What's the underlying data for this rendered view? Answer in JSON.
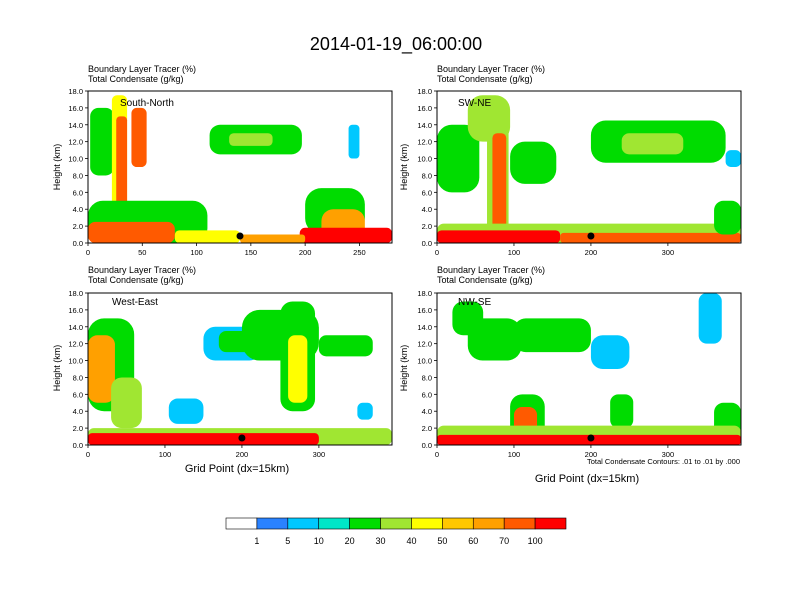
{
  "title": "2014-01-19_06:00:00",
  "chart_data": [
    {
      "type": "heatmap",
      "subtitle_1": "Boundary Layer Tracer    (%)",
      "subtitle_2": "Total Condensate    (g/kg)",
      "panel_label": "South-North",
      "ylabel": "Height (km)",
      "xlabel": "",
      "xlim": [
        0,
        280
      ],
      "ylim": [
        0,
        18
      ],
      "xticks": [
        {
          "v": 0,
          "label": "0"
        },
        {
          "v": 50,
          "label": "50"
        },
        {
          "v": 100,
          "label": "100"
        },
        {
          "v": 150,
          "label": "150"
        },
        {
          "v": 200,
          "label": "200"
        },
        {
          "v": 250,
          "label": "250"
        }
      ],
      "marker_x": 140,
      "blobs": [
        {
          "x": 2,
          "w": 22,
          "y": 8,
          "h": 8,
          "v": 20
        },
        {
          "x": 22,
          "w": 14,
          "y": 0,
          "h": 17.5,
          "v": 40
        },
        {
          "x": 26,
          "w": 10,
          "y": 1,
          "h": 14,
          "v": 70
        },
        {
          "x": 40,
          "w": 14,
          "y": 9,
          "h": 7,
          "v": 70
        },
        {
          "x": 0,
          "w": 110,
          "y": 0,
          "h": 5,
          "v": 20
        },
        {
          "x": 0,
          "w": 80,
          "y": 0,
          "h": 2.5,
          "v": 70
        },
        {
          "x": 80,
          "w": 60,
          "y": 0,
          "h": 1.5,
          "v": 40
        },
        {
          "x": 112,
          "w": 85,
          "y": 10.5,
          "h": 3.5,
          "v": 20
        },
        {
          "x": 130,
          "w": 40,
          "y": 11.5,
          "h": 1.5,
          "v": 30
        },
        {
          "x": 240,
          "w": 10,
          "y": 10,
          "h": 4,
          "v": 5
        },
        {
          "x": 200,
          "w": 55,
          "y": 1,
          "h": 5.5,
          "v": 20
        },
        {
          "x": 215,
          "w": 40,
          "y": 0,
          "h": 4,
          "v": 60
        },
        {
          "x": 195,
          "w": 85,
          "y": 0,
          "h": 1.8,
          "v": 100
        },
        {
          "x": 140,
          "w": 60,
          "y": 0,
          "h": 1,
          "v": 60
        }
      ]
    },
    {
      "type": "heatmap",
      "subtitle_1": "Boundary Layer Tracer    (%)",
      "subtitle_2": "Total Condensate    (g/kg)",
      "panel_label": "SW-NE",
      "ylabel": "Height (km)",
      "xlabel": "",
      "xlim": [
        0,
        395
      ],
      "ylim": [
        0,
        18
      ],
      "xticks": [
        {
          "v": 0,
          "label": "0"
        },
        {
          "v": 100,
          "label": "100"
        },
        {
          "v": 200,
          "label": "200"
        },
        {
          "v": 300,
          "label": "300"
        }
      ],
      "marker_x": 200,
      "blobs": [
        {
          "x": 0,
          "w": 55,
          "y": 6,
          "h": 8,
          "v": 20
        },
        {
          "x": 40,
          "w": 55,
          "y": 12,
          "h": 5.5,
          "v": 30
        },
        {
          "x": 65,
          "w": 28,
          "y": 0,
          "h": 16,
          "v": 30
        },
        {
          "x": 72,
          "w": 18,
          "y": 0,
          "h": 13,
          "v": 70
        },
        {
          "x": 95,
          "w": 60,
          "y": 7,
          "h": 5,
          "v": 20
        },
        {
          "x": 200,
          "w": 175,
          "y": 9.5,
          "h": 5,
          "v": 20
        },
        {
          "x": 240,
          "w": 80,
          "y": 10.5,
          "h": 2.5,
          "v": 30
        },
        {
          "x": 0,
          "w": 395,
          "y": 0,
          "h": 2.3,
          "v": 30
        },
        {
          "x": 0,
          "w": 160,
          "y": 0,
          "h": 1.5,
          "v": 100
        },
        {
          "x": 160,
          "w": 235,
          "y": 0,
          "h": 1.2,
          "v": 70
        },
        {
          "x": 360,
          "w": 35,
          "y": 1,
          "h": 4,
          "v": 20
        },
        {
          "x": 375,
          "w": 20,
          "y": 9,
          "h": 2,
          "v": 5
        }
      ]
    },
    {
      "type": "heatmap",
      "subtitle_1": "Boundary Layer Tracer    (%)",
      "subtitle_2": "Total Condensate    (g/kg)",
      "panel_label": "West-East",
      "ylabel": "Height (km)",
      "xlabel": "Grid Point (dx=15km)",
      "xlim": [
        0,
        395
      ],
      "ylim": [
        0,
        18
      ],
      "xticks": [
        {
          "v": 0,
          "label": "0"
        },
        {
          "v": 100,
          "label": "100"
        },
        {
          "v": 200,
          "label": "200"
        },
        {
          "v": 300,
          "label": "300"
        }
      ],
      "marker_x": 200,
      "blobs": [
        {
          "x": 0,
          "w": 60,
          "y": 4,
          "h": 11,
          "v": 20
        },
        {
          "x": 0,
          "w": 35,
          "y": 5,
          "h": 8,
          "v": 60
        },
        {
          "x": 30,
          "w": 40,
          "y": 2,
          "h": 6,
          "v": 30
        },
        {
          "x": 150,
          "w": 75,
          "y": 10,
          "h": 4,
          "v": 5
        },
        {
          "x": 170,
          "w": 50,
          "y": 11,
          "h": 2.5,
          "v": 20
        },
        {
          "x": 200,
          "w": 100,
          "y": 10,
          "h": 6,
          "v": 20
        },
        {
          "x": 250,
          "w": 45,
          "y": 4,
          "h": 13,
          "v": 20
        },
        {
          "x": 260,
          "w": 25,
          "y": 5,
          "h": 8,
          "v": 40
        },
        {
          "x": 300,
          "w": 70,
          "y": 10.5,
          "h": 2.5,
          "v": 20
        },
        {
          "x": 105,
          "w": 45,
          "y": 2.5,
          "h": 3,
          "v": 5
        },
        {
          "x": 350,
          "w": 20,
          "y": 3,
          "h": 2,
          "v": 5
        },
        {
          "x": 0,
          "w": 395,
          "y": 0,
          "h": 2,
          "v": 30
        },
        {
          "x": 0,
          "w": 300,
          "y": 0,
          "h": 1.4,
          "v": 100
        }
      ]
    },
    {
      "type": "heatmap",
      "subtitle_1": "Boundary Layer Tracer    (%)",
      "subtitle_2": "Total Condensate    (g/kg)",
      "panel_label": "NW-SE",
      "ylabel": "Height (km)",
      "xlabel": "Grid Point (dx=15km)",
      "footnote": "Total Condensate Contours: .01 to .01 by .000",
      "xlim": [
        0,
        395
      ],
      "ylim": [
        0,
        18
      ],
      "xticks": [
        {
          "v": 0,
          "label": "0"
        },
        {
          "v": 100,
          "label": "100"
        },
        {
          "v": 200,
          "label": "200"
        },
        {
          "v": 300,
          "label": "300"
        }
      ],
      "marker_x": 200,
      "blobs": [
        {
          "x": 20,
          "w": 40,
          "y": 13,
          "h": 4,
          "v": 20
        },
        {
          "x": 40,
          "w": 70,
          "y": 10,
          "h": 5,
          "v": 20
        },
        {
          "x": 100,
          "w": 100,
          "y": 11,
          "h": 4,
          "v": 20
        },
        {
          "x": 200,
          "w": 50,
          "y": 9,
          "h": 4,
          "v": 5
        },
        {
          "x": 95,
          "w": 45,
          "y": 0,
          "h": 6,
          "v": 20
        },
        {
          "x": 100,
          "w": 30,
          "y": 0,
          "h": 4.5,
          "v": 70
        },
        {
          "x": 225,
          "w": 30,
          "y": 2,
          "h": 4,
          "v": 20
        },
        {
          "x": 340,
          "w": 30,
          "y": 12,
          "h": 6,
          "v": 5
        },
        {
          "x": 360,
          "w": 35,
          "y": 1,
          "h": 4,
          "v": 20
        },
        {
          "x": 0,
          "w": 395,
          "y": 0,
          "h": 2.3,
          "v": 30
        },
        {
          "x": 0,
          "w": 395,
          "y": 0,
          "h": 1.2,
          "v": 100
        }
      ]
    }
  ],
  "colorbar": {
    "label_values": [
      "1",
      "5",
      "10",
      "20",
      "30",
      "40",
      "50",
      "60",
      "70",
      "100"
    ],
    "colors": [
      "#ffffff",
      "#2a82ff",
      "#00c8ff",
      "#00e6c8",
      "#00dc00",
      "#a0e632",
      "#ffff00",
      "#ffc800",
      "#ffa000",
      "#ff5a00",
      "#ff0000"
    ]
  }
}
